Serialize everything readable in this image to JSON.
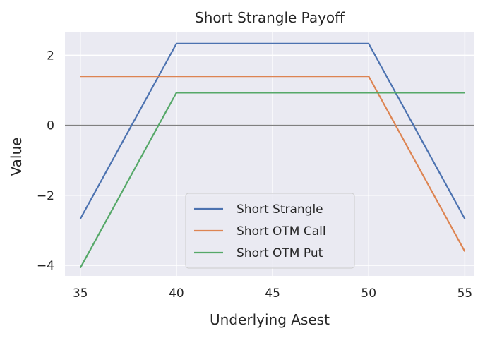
{
  "chart_data": {
    "type": "line",
    "title": "Short Strangle Payoff",
    "xlabel": "Underlying Asest",
    "ylabel": "Value",
    "xlim": [
      34.2,
      55.5
    ],
    "ylim": [
      -4.3,
      2.65
    ],
    "xticks": [
      35,
      40,
      45,
      50,
      55
    ],
    "xtick_labels": [
      "35",
      "40",
      "45",
      "50",
      "55"
    ],
    "yticks": [
      2,
      0,
      -2,
      -4
    ],
    "ytick_labels": [
      "2",
      "0",
      "−2",
      "−4"
    ],
    "grid": true,
    "zero_line": true,
    "legend_position": "lower-center",
    "series": [
      {
        "name": "Short Strangle",
        "color": "#4c72b0",
        "x": [
          35,
          40,
          50,
          55
        ],
        "y": [
          -2.67,
          2.33,
          2.33,
          -2.67
        ]
      },
      {
        "name": "Short OTM Call",
        "color": "#dd8452",
        "x": [
          35,
          50,
          55
        ],
        "y": [
          1.4,
          1.4,
          -3.6
        ]
      },
      {
        "name": "Short OTM Put",
        "color": "#55a868",
        "x": [
          35,
          40,
          55
        ],
        "y": [
          -4.07,
          0.93,
          0.93
        ]
      }
    ]
  }
}
